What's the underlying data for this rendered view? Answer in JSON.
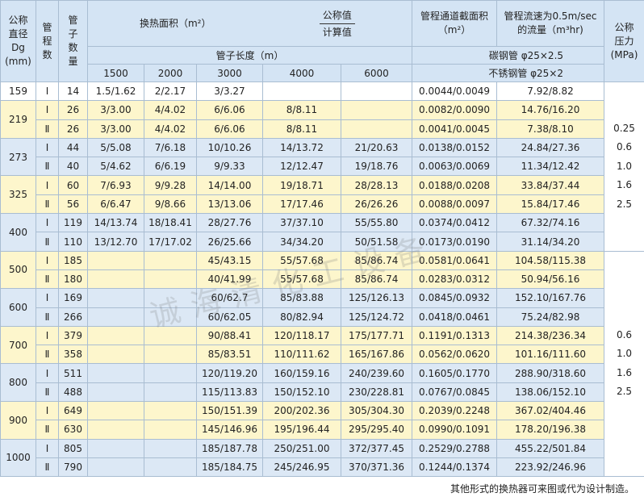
{
  "header": {
    "dg": [
      "公称",
      "直径",
      "Dg",
      "(mm)"
    ],
    "passes": [
      "管",
      "程",
      "数"
    ],
    "tubes": [
      "管",
      "子",
      "数",
      "量"
    ],
    "area": "换热面积（m²）",
    "nominal": "公称值",
    "calculated": "计算值",
    "tube_length": "管子长度（m）",
    "lengths": [
      "1500",
      "2000",
      "3000",
      "4000",
      "6000"
    ],
    "section": [
      "管程通道截面积",
      "（m²）"
    ],
    "flow": [
      "管程流速为0.5m/sec",
      "的流量（m³hr)"
    ],
    "carbon": "碳钢管 φ25×2.5",
    "stainless": "不锈钢管 φ25×2",
    "pressure": [
      "公称",
      "压力",
      "(MPa)"
    ]
  },
  "blocks": [
    {
      "pressure": [
        "0.25",
        "0.6",
        "1.0",
        "1.6",
        "2.5"
      ],
      "groups": [
        {
          "dg": "159",
          "rows": [
            [
              "Ⅰ",
              "14",
              "1.5/1.62",
              "2/2.17",
              "3/3.27",
              null,
              null,
              "0.0044/0.0049",
              "7.92/8.82"
            ]
          ]
        },
        {
          "dg": "219",
          "rows": [
            [
              "Ⅰ",
              "26",
              "3/3.00",
              "4/4.02",
              "6/6.06",
              "8/8.11",
              null,
              "0.0082/0.0090",
              "14.76/16.20"
            ],
            [
              "Ⅱ",
              "26",
              "3/3.00",
              "4/4.02",
              "6/6.06",
              "8/8.11",
              null,
              "0.0041/0.0045",
              "7.38/8.10"
            ]
          ]
        },
        {
          "dg": "273",
          "rows": [
            [
              "Ⅰ",
              "44",
              "5/5.08",
              "7/6.18",
              "10/10.26",
              "14/13.72",
              "21/20.63",
              "0.0138/0.0152",
              "24.84/27.36"
            ],
            [
              "Ⅱ",
              "40",
              "5/4.62",
              "6/6.19",
              "9/9.33",
              "12/12.47",
              "19/18.76",
              "0.0063/0.0069",
              "11.34/12.42"
            ]
          ]
        },
        {
          "dg": "325",
          "rows": [
            [
              "Ⅰ",
              "60",
              "7/6.93",
              "9/9.28",
              "14/14.00",
              "19/18.71",
              "28/28.13",
              "0.0188/0.0208",
              "33.84/37.44"
            ],
            [
              "Ⅱ",
              "56",
              "6/6.47",
              "9/8.66",
              "13/13.06",
              "17/17.46",
              "26/26.26",
              "0.0088/0.0097",
              "15.84/17.46"
            ]
          ]
        },
        {
          "dg": "400",
          "rows": [
            [
              "Ⅰ",
              "119",
              "14/13.74",
              "18/18.41",
              "28/27.76",
              "37/37.10",
              "55/55.80",
              "0.0374/0.0412",
              "67.32/74.16"
            ],
            [
              "Ⅱ",
              "110",
              "13/12.70",
              "17/17.02",
              "26/25.66",
              "34/34.20",
              "50/51.58",
              "0.0173/0.0190",
              "31.14/34.20"
            ]
          ]
        }
      ]
    },
    {
      "pressure": [
        "0.6",
        "1.0",
        "1.6",
        "2.5"
      ],
      "groups": [
        {
          "dg": "500",
          "rows": [
            [
              "Ⅰ",
              "185",
              null,
              null,
              "45/43.15",
              "55/57.68",
              "85/86.74",
              "0.0581/0.0641",
              "104.58/115.38"
            ],
            [
              "Ⅱ",
              "180",
              null,
              null,
              "40/41.99",
              "55/57.68",
              "85/86.74",
              "0.0283/0.0312",
              "50.94/56.16"
            ]
          ]
        },
        {
          "dg": "600",
          "rows": [
            [
              "Ⅰ",
              "169",
              null,
              null,
              "60/62.7",
              "85/83.88",
              "125/126.13",
              "0.0845/0.0932",
              "152.10/167.76"
            ],
            [
              "Ⅱ",
              "266",
              null,
              null,
              "60/62.05",
              "80/82.94",
              "125/124.72",
              "0.0418/0.0461",
              "75.24/82.98"
            ]
          ]
        },
        {
          "dg": "700",
          "rows": [
            [
              "Ⅰ",
              "379",
              null,
              null,
              "90/88.41",
              "120/118.17",
              "175/177.71",
              "0.1191/0.1313",
              "214.38/236.34"
            ],
            [
              "Ⅱ",
              "358",
              null,
              null,
              "85/83.51",
              "110/111.62",
              "165/167.86",
              "0.0562/0.0620",
              "101.16/111.60"
            ]
          ]
        },
        {
          "dg": "800",
          "rows": [
            [
              "Ⅰ",
              "511",
              null,
              null,
              "120/119.20",
              "160/159.16",
              "240/239.60",
              "0.1605/0.1770",
              "288.90/318.60"
            ],
            [
              "Ⅱ",
              "488",
              null,
              null,
              "115/113.83",
              "150/152.10",
              "230/228.81",
              "0.0767/0.0845",
              "138.06/152.10"
            ]
          ]
        },
        {
          "dg": "900",
          "rows": [
            [
              "Ⅰ",
              "649",
              null,
              null,
              "150/151.39",
              "200/202.36",
              "305/304.30",
              "0.2039/0.2248",
              "367.02/404.46"
            ],
            [
              "Ⅱ",
              "630",
              null,
              null,
              "145/146.96",
              "195/196.44",
              "295/295.40",
              "0.0990/0.1091",
              "178.20/196.38"
            ]
          ]
        },
        {
          "dg": "1000",
          "rows": [
            [
              "Ⅰ",
              "805",
              null,
              null,
              "185/187.78",
              "250/251.00",
              "372/377.45",
              "0.2529/0.2788",
              "455.22/501.84"
            ],
            [
              "Ⅱ",
              "790",
              null,
              null,
              "185/184.75",
              "245/246.95",
              "370/371.36",
              "0.1244/0.1374",
              "223.92/246.96"
            ]
          ]
        }
      ]
    }
  ],
  "watermark": "诚海清化工设备",
  "footnote": "其他形式的换热器可来图或代为设计制造。"
}
